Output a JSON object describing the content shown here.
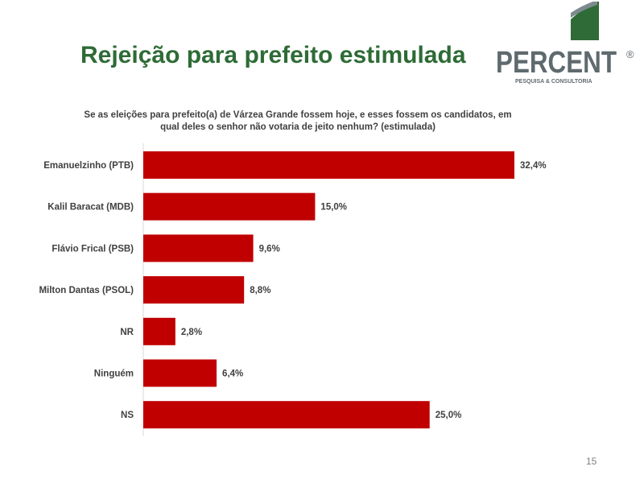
{
  "slide": {
    "title": "Rejeição para prefeito estimulada",
    "page_number": "15"
  },
  "logo": {
    "name": "PERCENT",
    "registered": "®",
    "tagline": "PESQUISA & CONSULTORIA",
    "colors": {
      "green": "#2e6b36",
      "gray": "#5f6a6e"
    }
  },
  "colors": {
    "bar": "#c00000",
    "title": "#2e6b36"
  },
  "chart_data": {
    "type": "bar",
    "orientation": "horizontal",
    "title_lines": [
      "Se as eleições para prefeito(a) de Várzea Grande fossem hoje, e esses fossem os candidatos, em",
      "qual deles o senhor não votaria de jeito nenhum? (estimulada)"
    ],
    "categories": [
      "Emanuelzinho (PTB)",
      "Kalil Baracat (MDB)",
      "Flávio Frical (PSB)",
      "Milton Dantas (PSOL)",
      "NR",
      "Ninguém",
      "NS"
    ],
    "values": [
      32.4,
      15.0,
      9.6,
      8.8,
      2.8,
      6.4,
      25.0
    ],
    "data_labels": [
      "32,4%",
      "15,0%",
      "9,6%",
      "8,8%",
      "2,8%",
      "6,4%",
      "25,0%"
    ],
    "unit": "%",
    "xlim": [
      0,
      32.4
    ],
    "grid": false,
    "legend": "none"
  }
}
